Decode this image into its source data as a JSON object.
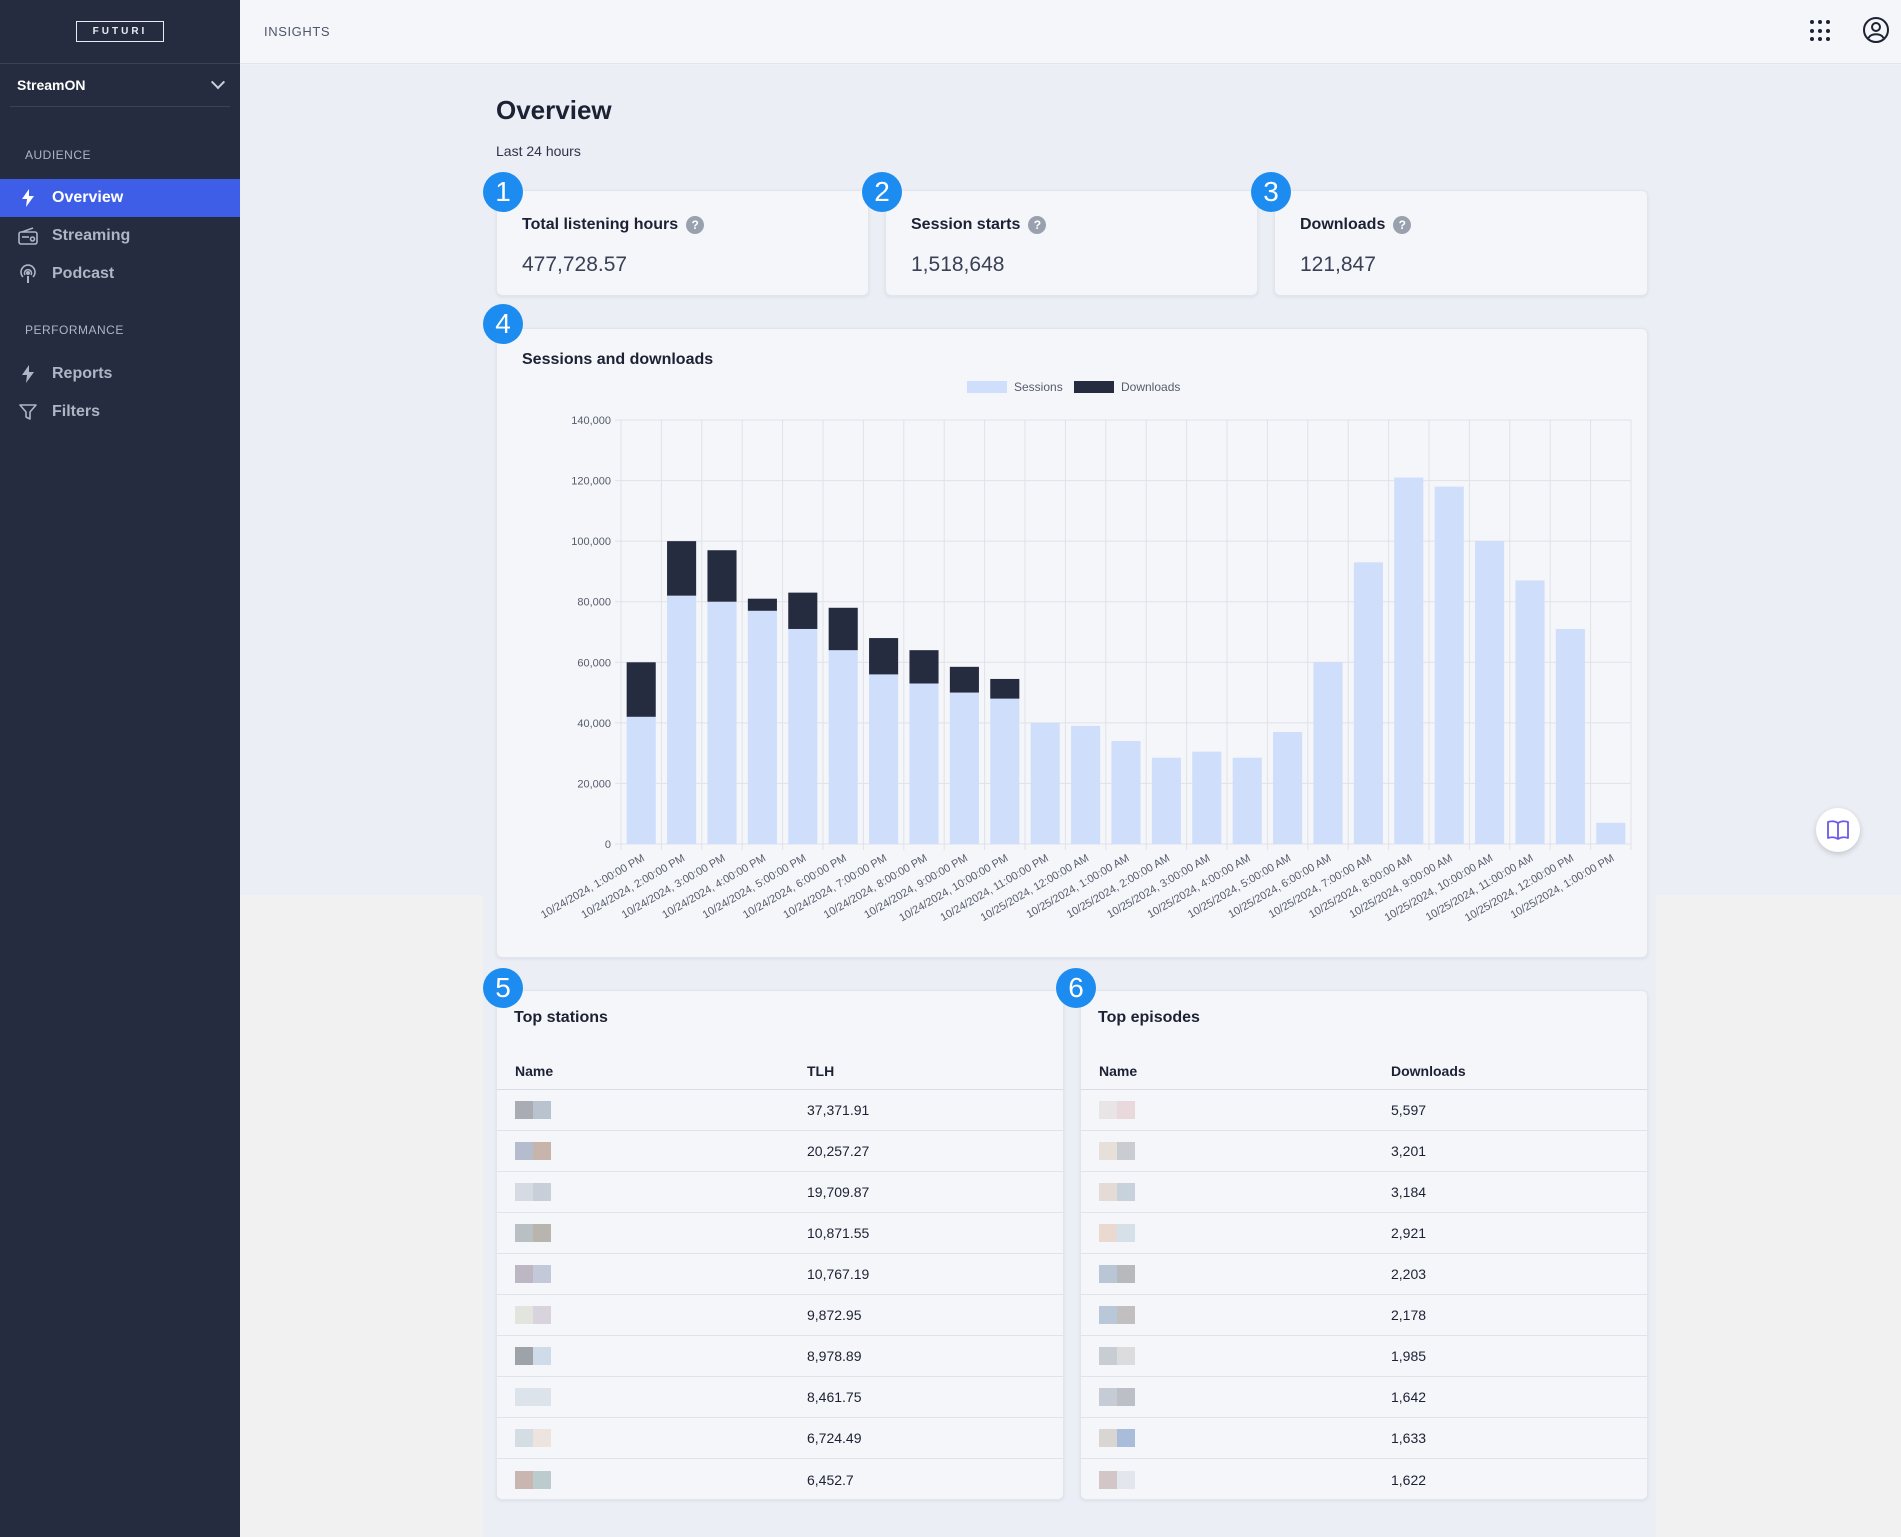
{
  "sidebar": {
    "logo": "FUTURI",
    "app": "StreamON",
    "audience_label": "AUDIENCE",
    "performance_label": "PERFORMANCE",
    "items": [
      {
        "label": "Overview",
        "icon": "bolt-icon"
      },
      {
        "label": "Streaming",
        "icon": "radio-icon"
      },
      {
        "label": "Podcast",
        "icon": "podcast-icon"
      },
      {
        "label": "Reports",
        "icon": "bolt-icon"
      },
      {
        "label": "Filters",
        "icon": "filter-icon"
      }
    ]
  },
  "header": {
    "title": "INSIGHTS"
  },
  "page": {
    "title": "Overview",
    "subtitle": "Last 24 hours"
  },
  "stats": [
    {
      "badge": "1",
      "label": "Total listening hours",
      "value": "477,728.57"
    },
    {
      "badge": "2",
      "label": "Session starts",
      "value": "1,518,648"
    },
    {
      "badge": "3",
      "label": "Downloads",
      "value": "121,847"
    }
  ],
  "chart_section": {
    "badge": "4",
    "title": "Sessions and downloads"
  },
  "chart_data": {
    "type": "bar",
    "stacked": true,
    "categories": [
      "10/24/2024, 1:00:00 PM",
      "10/24/2024, 2:00:00 PM",
      "10/24/2024, 3:00:00 PM",
      "10/24/2024, 4:00:00 PM",
      "10/24/2024, 5:00:00 PM",
      "10/24/2024, 6:00:00 PM",
      "10/24/2024, 7:00:00 PM",
      "10/24/2024, 8:00:00 PM",
      "10/24/2024, 9:00:00 PM",
      "10/24/2024, 10:00:00 PM",
      "10/24/2024, 11:00:00 PM",
      "10/25/2024, 12:00:00 AM",
      "10/25/2024, 1:00:00 AM",
      "10/25/2024, 2:00:00 AM",
      "10/25/2024, 3:00:00 AM",
      "10/25/2024, 4:00:00 AM",
      "10/25/2024, 5:00:00 AM",
      "10/25/2024, 6:00:00 AM",
      "10/25/2024, 7:00:00 AM",
      "10/25/2024, 8:00:00 AM",
      "10/25/2024, 9:00:00 AM",
      "10/25/2024, 10:00:00 AM",
      "10/25/2024, 11:00:00 AM",
      "10/25/2024, 12:00:00 PM",
      "10/25/2024, 1:00:00 PM"
    ],
    "series": [
      {
        "name": "Sessions",
        "color": "#cfdefb",
        "values": [
          42000,
          82000,
          80000,
          77000,
          71000,
          64000,
          56000,
          53000,
          50000,
          48000,
          40000,
          39000,
          34000,
          28500,
          30500,
          28500,
          37000,
          60000,
          93000,
          121000,
          118000,
          100000,
          87000,
          71000,
          7000
        ]
      },
      {
        "name": "Downloads",
        "color": "#252c3f",
        "values": [
          18000,
          18000,
          17000,
          4000,
          12000,
          14000,
          12000,
          11000,
          8500,
          6500,
          0,
          0,
          0,
          0,
          0,
          0,
          0,
          0,
          0,
          0,
          0,
          0,
          0,
          0,
          0
        ]
      }
    ],
    "y_ticks": [
      "0",
      "20,000",
      "40,000",
      "60,000",
      "80,000",
      "100,000",
      "120,000",
      "140,000"
    ],
    "ylim": [
      0,
      140000
    ],
    "grid": true,
    "legend": "top-center"
  },
  "top_stations": {
    "badge": "5",
    "title": "Top stations",
    "col_name": "Name",
    "col_value": "TLH",
    "rows": [
      {
        "value": "37,371.91",
        "swatch": [
          "#a9adb3",
          "#b9c3cf"
        ]
      },
      {
        "value": "20,257.27",
        "swatch": [
          "#b4bccd",
          "#c7b4aa"
        ]
      },
      {
        "value": "19,709.87",
        "swatch": [
          "#d6dbe3",
          "#c9cfd8"
        ]
      },
      {
        "value": "10,871.55",
        "swatch": [
          "#b8c0c3",
          "#b7b5ae"
        ]
      },
      {
        "value": "10,767.19",
        "swatch": [
          "#bcb7c2",
          "#c3c9d8"
        ]
      },
      {
        "value": "9,872.95",
        "swatch": [
          "#e2e4dd",
          "#d9d3dd"
        ]
      },
      {
        "value": "8,978.89",
        "swatch": [
          "#9ea3aa",
          "#cfdbe8"
        ]
      },
      {
        "value": "8,461.75",
        "swatch": [
          "#dde3ea",
          "#dde3ea"
        ]
      },
      {
        "value": "6,724.49",
        "swatch": [
          "#d3dde3",
          "#ede4e0"
        ]
      },
      {
        "value": "6,452.7",
        "swatch": [
          "#c9b6b1",
          "#bccbce"
        ]
      }
    ]
  },
  "top_episodes": {
    "badge": "6",
    "title": "Top episodes",
    "col_name": "Name",
    "col_value": "Downloads",
    "rows": [
      {
        "value": "5,597",
        "swatch": [
          "#e9e5e7",
          "#ead9dc"
        ]
      },
      {
        "value": "3,201",
        "swatch": [
          "#e7e0da",
          "#c9cdd1"
        ]
      },
      {
        "value": "3,184",
        "swatch": [
          "#e4dbd4",
          "#c8d2dd"
        ]
      },
      {
        "value": "2,921",
        "swatch": [
          "#ead9d1",
          "#d5e0e9"
        ]
      },
      {
        "value": "2,203",
        "swatch": [
          "#b8c6d6",
          "#b7b9bd"
        ]
      },
      {
        "value": "2,178",
        "swatch": [
          "#b9c8d8",
          "#c2bfc0"
        ]
      },
      {
        "value": "1,985",
        "swatch": [
          "#c8ccd3",
          "#dcdcdf"
        ]
      },
      {
        "value": "1,642",
        "swatch": [
          "#c5ccd5",
          "#bdbfc6"
        ]
      },
      {
        "value": "1,633",
        "swatch": [
          "#d9d5d3",
          "#a9bcda"
        ]
      },
      {
        "value": "1,622",
        "swatch": [
          "#d2c7c6",
          "#e3e6ec"
        ]
      }
    ]
  }
}
